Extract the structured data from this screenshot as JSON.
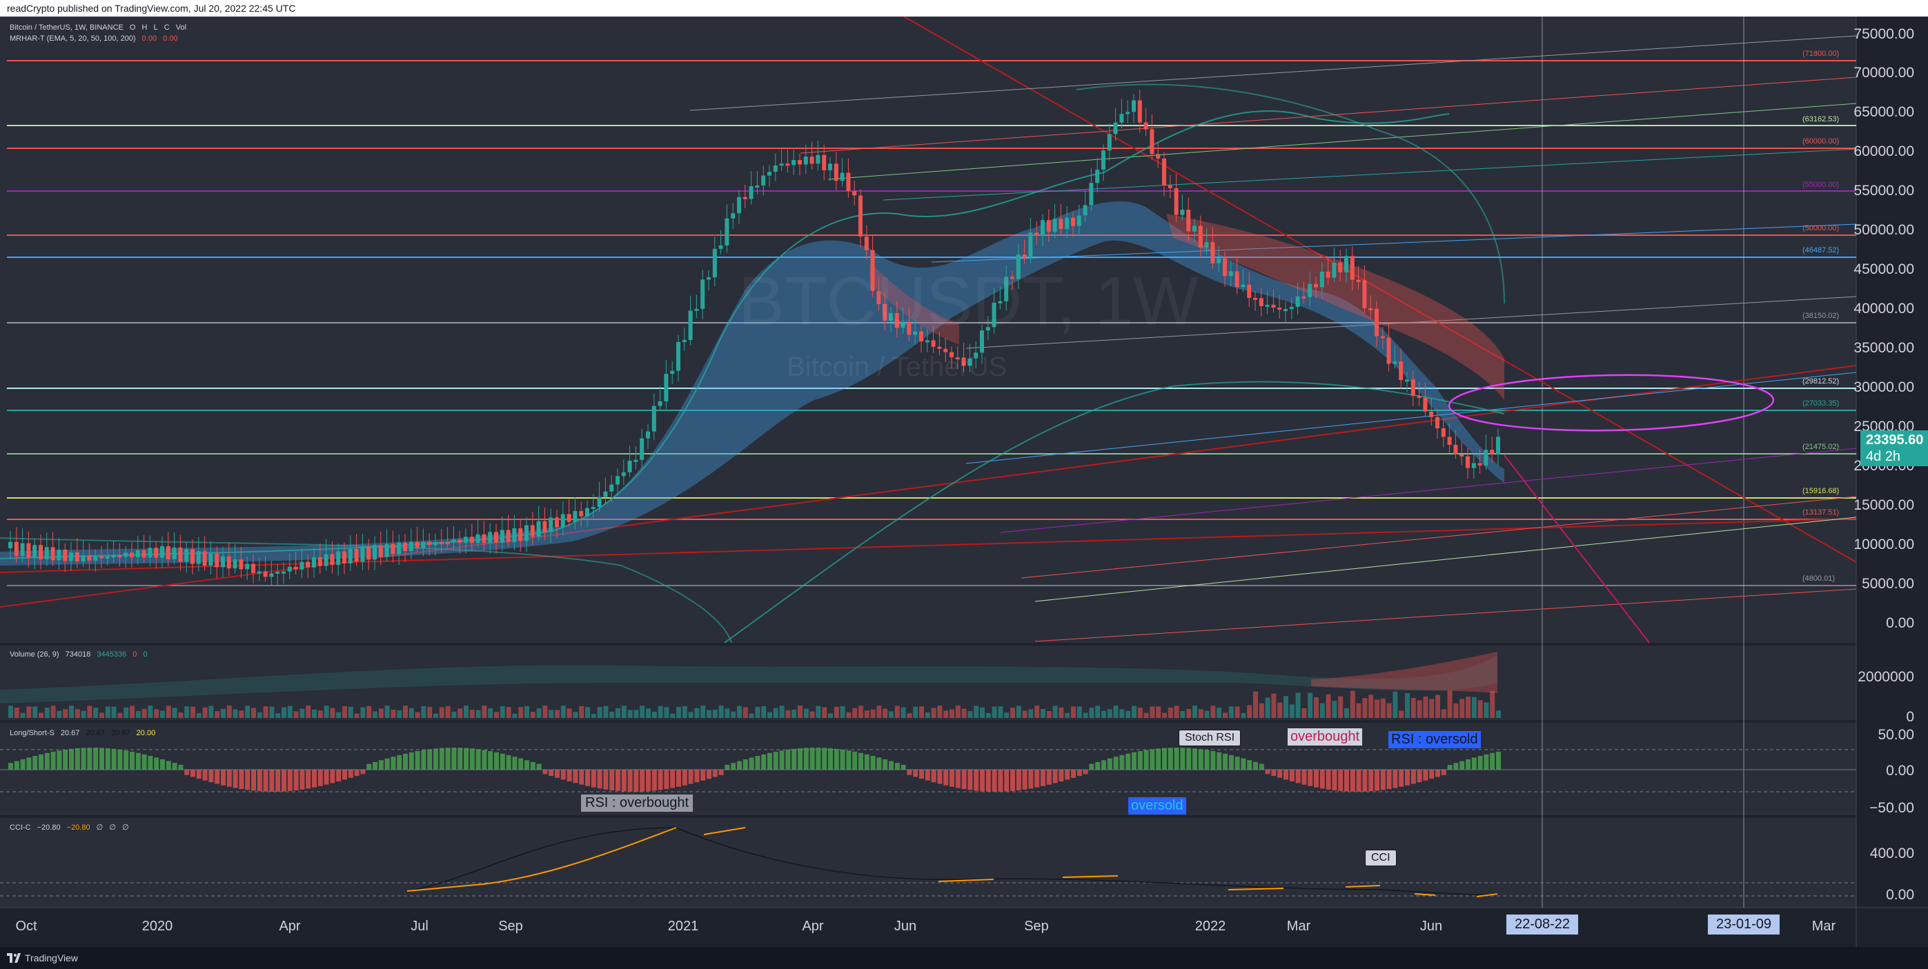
{
  "header": {
    "published": "readCrypto published on TradingView.com, Jul 20, 2022 22:45 UTC"
  },
  "main_legend": {
    "symbol": "Bitcoin / TetherUS, 1W, BINANCE",
    "ohlc": [
      "O",
      "H",
      "L",
      "C"
    ],
    "vol_label": "Vol",
    "indicator": "MRHAR-T (EMA, 5, 20, 50, 100, 200)",
    "indicator_values": [
      "0.00",
      "0.00"
    ]
  },
  "watermark": {
    "big": "BTCUSDT, 1W",
    "small": "Bitcoin / TetherUS"
  },
  "price_axis": [
    "75000.00",
    "70000.00",
    "65000.00",
    "60000.00",
    "55000.00",
    "50000.00",
    "45000.00",
    "40000.00",
    "35000.00",
    "30000.00",
    "25000.00",
    "20000.00",
    "15000.00",
    "10000.00",
    "5000.00",
    "0.00"
  ],
  "current_price": {
    "value": "23395.60",
    "countdown": "4d 2h"
  },
  "level_labels": [
    {
      "text": "(71800.00)",
      "color": "#ef5350"
    },
    {
      "text": "(63162.53)",
      "color": "#b7e4a0"
    },
    {
      "text": "(60000.00)",
      "color": "#ef5350"
    },
    {
      "text": "(55000.00)",
      "color": "#9c27b0"
    },
    {
      "text": "(50000.00)",
      "color": "#ef5350"
    },
    {
      "text": "(46487.52)",
      "color": "#42a5f5"
    },
    {
      "text": "(38150.02)",
      "color": "#9598a1"
    },
    {
      "text": "(29812.52)",
      "color": "#d1d4dc"
    },
    {
      "text": "(27033.35)",
      "color": "#26a69a"
    },
    {
      "text": "(21475.02)",
      "color": "#81c784"
    },
    {
      "text": "(15916.68)",
      "color": "#d4e157"
    },
    {
      "text": "(13137.51)",
      "color": "#ef5350"
    },
    {
      "text": "(4800.01)",
      "color": "#9598a1"
    }
  ],
  "volume_pane": {
    "legend": "Volume (26, 9)",
    "values": [
      "734018",
      "3445336",
      "0",
      "0"
    ],
    "axis": [
      "2000000",
      "0"
    ]
  },
  "ls_pane": {
    "legend": "Long/Short-S",
    "values": [
      "20.67",
      "20.67",
      "20.67",
      "20.00"
    ],
    "axis": [
      "50.00",
      "0.00",
      "−50.00"
    ]
  },
  "cci_pane": {
    "legend": "CCI-C",
    "values": [
      "−20.80",
      "−20.80",
      "∅",
      "∅",
      "∅"
    ],
    "axis": [
      "400.00",
      "0.00"
    ]
  },
  "annotations": {
    "rsi_overbought": "RSI : overbought",
    "oversold": "oversold",
    "stoch_rsi": "Stoch RSI",
    "overbought": "overbought",
    "rsi_oversold": "RSI : oversold",
    "cci": "CCI"
  },
  "time_axis": [
    "Oct",
    "2020",
    "Apr",
    "Jul",
    "Sep",
    "2021",
    "Apr",
    "Jun",
    "Sep",
    "2022",
    "Mar",
    "Jun",
    "Mar"
  ],
  "time_markers": [
    "22-08-22",
    "23-01-09"
  ],
  "footer": {
    "brand": "TradingView"
  },
  "colors": {
    "background": "#1e222d",
    "up": "#26a69a",
    "down": "#ef5350",
    "accent_box": "#b2c8ee",
    "circle": "#e040fb"
  }
}
